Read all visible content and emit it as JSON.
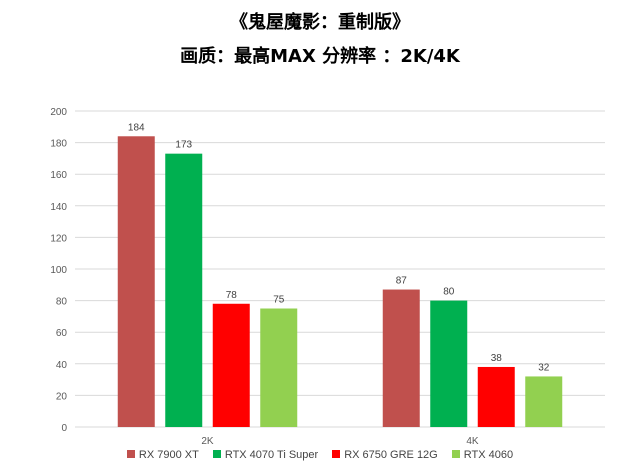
{
  "chart_data": {
    "type": "bar",
    "title": "《鬼屋魔影：重制版》",
    "subtitle": "画质：最高MAX  分辨率 ：2K/4K",
    "categories": [
      "2K",
      "4K"
    ],
    "series": [
      {
        "name": "RX 7900 XT",
        "color": "#C0504D",
        "values": [
          184,
          87
        ]
      },
      {
        "name": "RTX 4070 Ti Super",
        "color": "#00B050",
        "values": [
          173,
          80
        ]
      },
      {
        "name": "RX 6750 GRE 12G",
        "color": "#FF0000",
        "values": [
          78,
          38
        ]
      },
      {
        "name": "RTX 4060",
        "color": "#92D050",
        "values": [
          75,
          32
        ]
      }
    ],
    "ylim": [
      0,
      200
    ],
    "yticks": [
      0,
      20,
      40,
      60,
      80,
      100,
      120,
      140,
      160,
      180,
      200
    ],
    "grid": true,
    "legend": "bottom"
  }
}
